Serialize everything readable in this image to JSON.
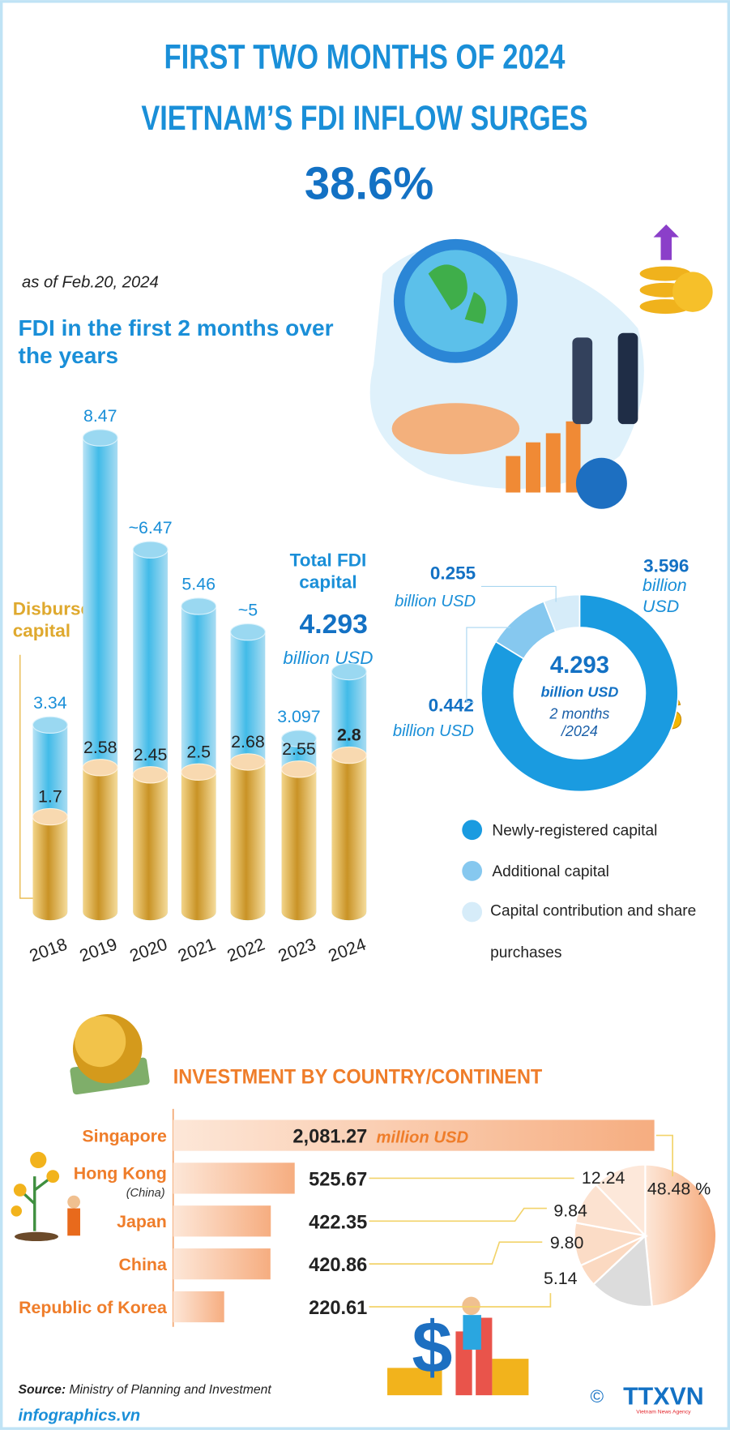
{
  "header": {
    "title_line1": "FIRST TWO MONTHS OF 2024",
    "title_line2": "VIETNAM’S FDI INFLOW SURGES",
    "growth": "38.6%",
    "as_of": "as of Feb.20, 2024"
  },
  "chart_data": [
    {
      "type": "cylinder-bar",
      "title": "FDI in the first 2 months over the years",
      "categories": [
        "2018",
        "2019",
        "2020",
        "2021",
        "2022",
        "2023",
        "2024"
      ],
      "series": [
        {
          "color": "#3db8e6",
          "values": [
            3.34,
            8.47,
            6.47,
            5.46,
            5,
            3.097,
            4.293
          ],
          "value_labels": [
            "3.34",
            "8.47",
            "~6.47",
            "5.46",
            "~5",
            "3.097",
            null
          ]
        },
        {
          "name": "Disbursed capital",
          "color": "#e8b84a",
          "values": [
            1.7,
            2.58,
            2.45,
            2.5,
            2.68,
            2.55,
            2.8
          ]
        }
      ],
      "annotation": {
        "title": "Total FDI capital",
        "unit": "billion USD"
      }
    },
    {
      "type": "donut",
      "categories": [
        "Newly-registered capital",
        "Additional capital",
        "Capital contribution and share purchases"
      ],
      "values": [
        3.596,
        0.442,
        0.255
      ],
      "colors": [
        "#1a9be0",
        "#86c8ef",
        "#d6ecf9"
      ],
      "unit": "billion USD",
      "total": 4.293,
      "center_note": "2 months /2024"
    },
    {
      "type": "hbar",
      "title": "INVESTMENT BY COUNTRY/CONTINENT",
      "categories": [
        "Singapore",
        "Hong Kong",
        "Japan",
        "China",
        "Republic of Korea"
      ],
      "category_notes": [
        null,
        "(China)",
        null,
        null,
        null
      ],
      "values": [
        2081.27,
        525.67,
        422.35,
        420.86,
        220.61
      ],
      "value_labels": [
        "2,081.27",
        "525.67",
        "422.35",
        "420.86",
        "220.61"
      ],
      "unit": "million USD",
      "color": "#f6b184"
    },
    {
      "type": "pie",
      "values": [
        48.48,
        14.5,
        5.14,
        9.8,
        9.84,
        12.24
      ],
      "value_labels": [
        "48.48 %",
        null,
        "5.14",
        "9.80",
        "9.84",
        "12.24"
      ],
      "colors": [
        "#f7b98c",
        "#dcdcdc",
        "#fbd9c1",
        "#fbdcc6",
        "#fce2d0",
        "#fde8da"
      ]
    }
  ],
  "footer": {
    "source_label": "Source:",
    "source": "Ministry of Planning and Investment",
    "site": "infographics.vn",
    "copyright": "©",
    "logo": "TTXVN",
    "agency": "Vietnam News Agency"
  }
}
